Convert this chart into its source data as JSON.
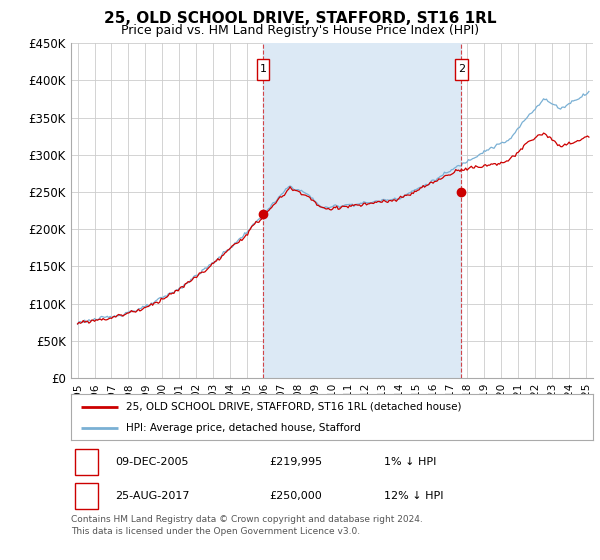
{
  "title": "25, OLD SCHOOL DRIVE, STAFFORD, ST16 1RL",
  "subtitle": "Price paid vs. HM Land Registry's House Price Index (HPI)",
  "ylabel_ticks": [
    0,
    50000,
    100000,
    150000,
    200000,
    250000,
    300000,
    350000,
    400000,
    450000
  ],
  "ylabel_labels": [
    "£0",
    "£50K",
    "£100K",
    "£150K",
    "£200K",
    "£250K",
    "£300K",
    "£350K",
    "£400K",
    "£450K"
  ],
  "ylim": [
    0,
    450000
  ],
  "xlim_start": 1994.6,
  "xlim_end": 2025.4,
  "sale1_x": 2005.94,
  "sale1_y": 219995,
  "sale2_x": 2017.65,
  "sale2_y": 250000,
  "sale1_label": "09-DEC-2005",
  "sale2_label": "25-AUG-2017",
  "sale1_price": "£219,995",
  "sale2_price": "£250,000",
  "sale1_hpi": "1% ↓ HPI",
  "sale2_hpi": "12% ↓ HPI",
  "legend1": "25, OLD SCHOOL DRIVE, STAFFORD, ST16 1RL (detached house)",
  "legend2": "HPI: Average price, detached house, Stafford",
  "footnote": "Contains HM Land Registry data © Crown copyright and database right 2024.\nThis data is licensed under the Open Government Licence v3.0.",
  "red_color": "#cc0000",
  "blue_color": "#7ab0d4",
  "fill_color": "#dce9f5",
  "background_color": "#ffffff",
  "grid_color": "#cccccc",
  "box_color": "#cc0000"
}
